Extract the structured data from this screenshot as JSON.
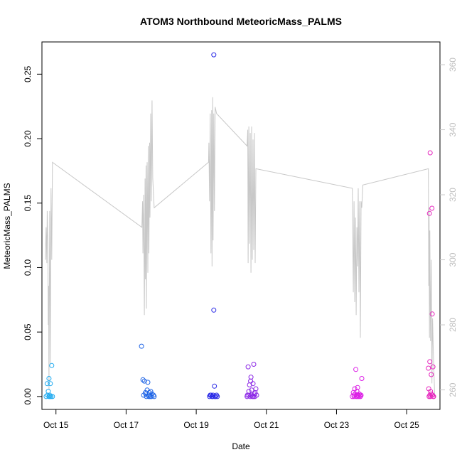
{
  "chart_data": {
    "type": "scatter",
    "title": "ATOM3 Northbound MeteoricMass_PALMS",
    "xlabel": "Date",
    "ylabel": "MeteoricMass_PALMS",
    "x_tick_labels": [
      "Oct 15",
      "Oct 17",
      "Oct 19",
      "Oct 21",
      "Oct 23",
      "Oct 25"
    ],
    "x_tick_values": [
      15,
      17,
      19,
      21,
      23,
      25
    ],
    "xlim": [
      14.6,
      25.95
    ],
    "ylim": [
      -0.01,
      0.275
    ],
    "y_ticks": [
      0.0,
      0.05,
      0.1,
      0.15,
      0.2,
      0.25
    ],
    "y_tick_labels": [
      "0.00",
      "0.05",
      "0.10",
      "0.15",
      "0.20",
      "0.25"
    ],
    "y2_ticks": [
      260,
      280,
      300,
      320,
      340,
      360
    ],
    "y2_tick_labels": [
      "260",
      "280",
      "300",
      "320",
      "340",
      "360"
    ],
    "y2lim": [
      254,
      367
    ],
    "y2_color": "#c8c8c8",
    "scatter_series": [
      {
        "color": "#1eaaf0",
        "points": [
          [
            14.72,
            0.0
          ],
          [
            14.75,
            0.01
          ],
          [
            14.78,
            0.004
          ],
          [
            14.8,
            0.0
          ],
          [
            14.8,
            0.014
          ],
          [
            14.82,
            0.001
          ],
          [
            14.84,
            0.01
          ],
          [
            14.86,
            0.0
          ],
          [
            14.88,
            0.024
          ],
          [
            14.9,
            0.0
          ],
          [
            14.76,
            0.001
          ],
          [
            14.83,
            0.0
          ]
        ]
      },
      {
        "color": "#1e64e6",
        "points": [
          [
            17.44,
            0.039
          ],
          [
            17.48,
            0.013
          ],
          [
            17.52,
            0.012
          ],
          [
            17.55,
            0.003
          ],
          [
            17.6,
            0.005
          ],
          [
            17.62,
            0.011
          ],
          [
            17.66,
            0.003
          ],
          [
            17.7,
            0.004
          ],
          [
            17.58,
            0.0
          ],
          [
            17.64,
            0.001
          ],
          [
            17.68,
            0.0
          ],
          [
            17.72,
            0.0
          ],
          [
            17.74,
            0.002
          ],
          [
            17.78,
            0.001
          ],
          [
            17.8,
            0.0
          ],
          [
            17.5,
            0.001
          ],
          [
            17.56,
            0.002
          ],
          [
            17.65,
            0.0
          ]
        ]
      },
      {
        "color": "#2828e6",
        "points": [
          [
            19.5,
            0.265
          ],
          [
            19.5,
            0.067
          ],
          [
            19.52,
            0.008
          ],
          [
            19.38,
            0.0
          ],
          [
            19.42,
            0.001
          ],
          [
            19.45,
            0.0
          ],
          [
            19.48,
            0.001
          ],
          [
            19.55,
            0.0
          ],
          [
            19.58,
            0.001
          ],
          [
            19.6,
            0.0
          ],
          [
            19.4,
            0.001
          ],
          [
            19.47,
            0.0
          ],
          [
            19.53,
            0.0
          ]
        ]
      },
      {
        "color": "#8c28e6",
        "points": [
          [
            20.45,
            0.0
          ],
          [
            20.48,
            0.023
          ],
          [
            20.5,
            0.001
          ],
          [
            20.52,
            0.009
          ],
          [
            20.55,
            0.012
          ],
          [
            20.56,
            0.015
          ],
          [
            20.58,
            0.005
          ],
          [
            20.6,
            0.0
          ],
          [
            20.62,
            0.01
          ],
          [
            20.64,
            0.025
          ],
          [
            20.66,
            0.002
          ],
          [
            20.68,
            0.003
          ],
          [
            20.7,
            0.006
          ],
          [
            20.72,
            0.001
          ],
          [
            20.54,
            0.0
          ],
          [
            20.5,
            0.004
          ],
          [
            20.57,
            0.001
          ],
          [
            20.63,
            0.0
          ],
          [
            20.67,
            0.0
          ],
          [
            20.46,
            0.001
          ]
        ]
      },
      {
        "color": "#dc1ee6",
        "points": [
          [
            23.45,
            0.0
          ],
          [
            23.48,
            0.003
          ],
          [
            23.5,
            0.001
          ],
          [
            23.52,
            0.006
          ],
          [
            23.55,
            0.021
          ],
          [
            23.58,
            0.004
          ],
          [
            23.6,
            0.007
          ],
          [
            23.62,
            0.001
          ],
          [
            23.65,
            0.002
          ],
          [
            23.68,
            0.0
          ],
          [
            23.7,
            0.001
          ],
          [
            23.72,
            0.014
          ],
          [
            23.5,
            0.0
          ],
          [
            23.56,
            0.0
          ],
          [
            23.6,
            0.0
          ],
          [
            23.64,
            0.0
          ],
          [
            23.67,
            0.001
          ],
          [
            23.53,
            0.002
          ],
          [
            23.58,
            0.001
          ]
        ]
      },
      {
        "color": "#e628be",
        "points": [
          [
            25.63,
            0.006
          ],
          [
            25.65,
            0.142
          ],
          [
            25.66,
            0.027
          ],
          [
            25.67,
            0.189
          ],
          [
            25.68,
            0.004
          ],
          [
            25.7,
            0.017
          ],
          [
            25.72,
            0.146
          ],
          [
            25.73,
            0.064
          ],
          [
            25.75,
            0.023
          ],
          [
            25.77,
            0.0
          ],
          [
            25.64,
            0.0
          ],
          [
            25.66,
            0.001
          ],
          [
            25.7,
            0.002
          ],
          [
            25.74,
            0.001
          ],
          [
            25.76,
            0.0
          ],
          [
            25.62,
            0.022
          ],
          [
            25.68,
            0.0
          ],
          [
            25.72,
            0.001
          ]
        ]
      }
    ],
    "line_series": {
      "color": "#c8c8c8",
      "axis": "right",
      "points": [
        [
          14.7,
          300
        ],
        [
          14.72,
          310
        ],
        [
          14.74,
          299
        ],
        [
          14.75,
          315
        ],
        [
          14.77,
          305
        ],
        [
          14.78,
          280
        ],
        [
          14.79,
          292
        ],
        [
          14.8,
          260
        ],
        [
          14.81,
          290
        ],
        [
          14.82,
          315
        ],
        [
          14.84,
          268
        ],
        [
          14.86,
          322
        ],
        [
          14.88,
          300
        ],
        [
          14.9,
          330
        ],
        [
          17.45,
          310
        ],
        [
          17.47,
          318
        ],
        [
          17.48,
          302
        ],
        [
          17.5,
          320
        ],
        [
          17.52,
          283
        ],
        [
          17.54,
          325
        ],
        [
          17.55,
          294
        ],
        [
          17.57,
          329
        ],
        [
          17.58,
          285
        ],
        [
          17.6,
          330
        ],
        [
          17.62,
          296
        ],
        [
          17.63,
          335
        ],
        [
          17.65,
          302
        ],
        [
          17.67,
          336
        ],
        [
          17.68,
          313
        ],
        [
          17.7,
          345
        ],
        [
          17.72,
          318
        ],
        [
          17.74,
          349
        ],
        [
          17.76,
          325
        ],
        [
          17.8,
          316
        ],
        [
          19.35,
          330
        ],
        [
          19.36,
          336
        ],
        [
          19.38,
          318
        ],
        [
          19.4,
          345
        ],
        [
          19.42,
          302
        ],
        [
          19.44,
          346
        ],
        [
          19.45,
          298
        ],
        [
          19.47,
          350
        ],
        [
          19.48,
          306
        ],
        [
          19.5,
          345
        ],
        [
          19.52,
          315
        ],
        [
          19.54,
          347
        ],
        [
          19.58,
          345
        ],
        [
          20.45,
          335
        ],
        [
          20.47,
          340
        ],
        [
          20.48,
          299
        ],
        [
          20.5,
          341
        ],
        [
          20.52,
          305
        ],
        [
          20.54,
          339
        ],
        [
          20.56,
          296
        ],
        [
          20.58,
          341
        ],
        [
          20.6,
          300
        ],
        [
          20.62,
          337
        ],
        [
          20.64,
          303
        ],
        [
          20.66,
          339
        ],
        [
          20.68,
          299
        ],
        [
          20.7,
          328
        ],
        [
          23.45,
          322
        ],
        [
          23.46,
          311
        ],
        [
          23.48,
          290
        ],
        [
          23.5,
          318
        ],
        [
          23.52,
          287
        ],
        [
          23.54,
          313
        ],
        [
          23.56,
          283
        ],
        [
          23.58,
          310
        ],
        [
          23.6,
          298
        ],
        [
          23.62,
          322
        ],
        [
          23.64,
          290
        ],
        [
          23.66,
          318
        ],
        [
          23.68,
          276
        ],
        [
          23.7,
          318
        ],
        [
          23.72,
          316
        ],
        [
          23.75,
          323
        ],
        [
          25.62,
          328
        ],
        [
          25.63,
          292
        ],
        [
          25.64,
          316
        ],
        [
          25.65,
          276
        ],
        [
          25.66,
          309
        ],
        [
          25.68,
          275
        ],
        [
          25.7,
          300
        ],
        [
          25.72,
          262
        ],
        [
          25.74,
          282
        ],
        [
          25.76,
          272
        ],
        [
          25.8,
          258
        ]
      ],
      "connectors": [
        [
          [
            14.9,
            330
          ],
          [
            17.45,
            310
          ]
        ],
        [
          [
            17.8,
            316
          ],
          [
            19.35,
            330
          ]
        ],
        [
          [
            19.58,
            345
          ],
          [
            20.45,
            335
          ]
        ],
        [
          [
            20.7,
            328
          ],
          [
            23.45,
            322
          ]
        ],
        [
          [
            23.75,
            323
          ],
          [
            25.62,
            328
          ]
        ]
      ]
    }
  }
}
